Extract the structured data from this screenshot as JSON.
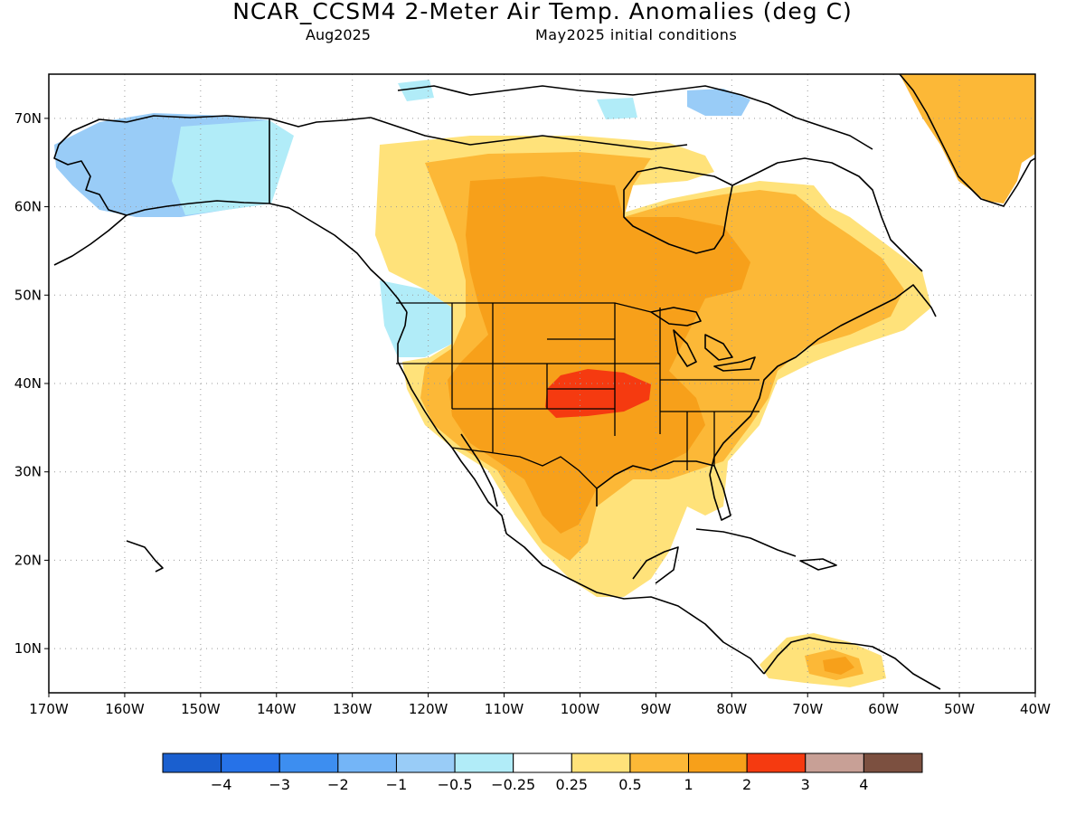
{
  "header": {
    "title": "NCAR_CCSM4 2-Meter Air Temp. Anomalies (deg C)",
    "valid_month": "Aug2025",
    "init_conditions": "May2025 initial conditions"
  },
  "map": {
    "lon_range": [
      -170,
      -40
    ],
    "lat_range": [
      5,
      75
    ],
    "lon_ticks": [
      {
        "value": -170,
        "label": "170W"
      },
      {
        "value": -160,
        "label": "160W"
      },
      {
        "value": -150,
        "label": "150W"
      },
      {
        "value": -140,
        "label": "140W"
      },
      {
        "value": -130,
        "label": "130W"
      },
      {
        "value": -120,
        "label": "120W"
      },
      {
        "value": -110,
        "label": "110W"
      },
      {
        "value": -100,
        "label": "100W"
      },
      {
        "value": -90,
        "label": "90W"
      },
      {
        "value": -80,
        "label": "80W"
      },
      {
        "value": -70,
        "label": "70W"
      },
      {
        "value": -60,
        "label": "60W"
      },
      {
        "value": -50,
        "label": "50W"
      },
      {
        "value": -40,
        "label": "40W"
      }
    ],
    "lat_ticks": [
      {
        "value": 10,
        "label": "10N"
      },
      {
        "value": 20,
        "label": "20N"
      },
      {
        "value": 30,
        "label": "30N"
      },
      {
        "value": 40,
        "label": "40N"
      },
      {
        "value": 50,
        "label": "50N"
      },
      {
        "value": 60,
        "label": "60N"
      },
      {
        "value": 70,
        "label": "70N"
      }
    ],
    "grid": "dotted"
  },
  "colorbar": {
    "colors": [
      "#1a5fcf",
      "#2672e8",
      "#3d8ef0",
      "#74b5f7",
      "#99ccf7",
      "#b1ecf8",
      "#ffffff",
      "#ffe27a",
      "#fcb837",
      "#f7a01a",
      "#f53a10",
      "#c8a096",
      "#7c5040"
    ],
    "labels": [
      "−4",
      "−3",
      "−2",
      "−1",
      "−0.5",
      "−0.25",
      "0.25",
      "0.5",
      "1",
      "2",
      "3",
      "4"
    ]
  },
  "colors": {
    "strong_warm": "#f53a10",
    "warm": "#f7a01a",
    "mild_warm": "#fcb837",
    "slight_warm": "#ffe27a",
    "slight_cool": "#b1ecf8",
    "mild_cool": "#99ccf7",
    "coast_line": "#000000"
  }
}
